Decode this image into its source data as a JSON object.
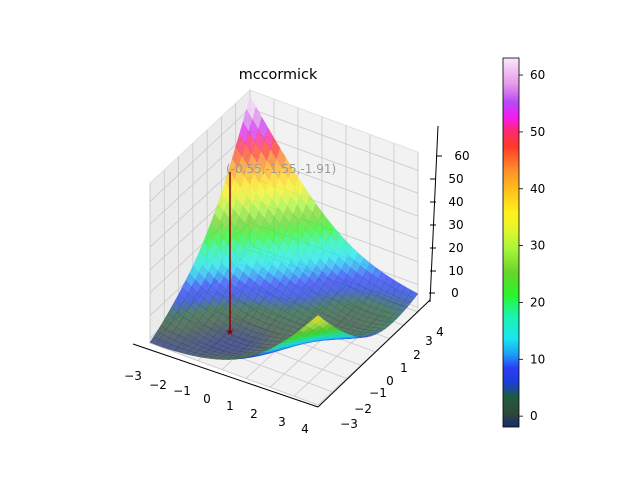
{
  "chart_data": {
    "type": "surface3d",
    "title": "mccormick",
    "function": "f(x,y) = sin(x+y) + (x-y)^2 - 1.5x + 2.5y + 1",
    "x": {
      "label": "",
      "ticks": [
        -3,
        -2,
        -1,
        0,
        1,
        2,
        3,
        4
      ],
      "range": [
        -3,
        4
      ]
    },
    "y": {
      "label": "",
      "ticks": [
        -3,
        -2,
        -1,
        0,
        1,
        2,
        3,
        4
      ],
      "range": [
        -3,
        4
      ]
    },
    "z": {
      "label": "",
      "ticks": [
        0,
        10,
        20,
        30,
        40,
        50,
        60
      ],
      "range": [
        -2,
        68
      ]
    },
    "colormap": "gist_ncar",
    "colorbar": {
      "ticks": [
        0,
        10,
        20,
        30,
        40,
        50,
        60
      ],
      "range": [
        -1.91,
        63
      ]
    },
    "minimum_marker": {
      "x": -0.55,
      "y": -1.55,
      "z": -1.91,
      "marker": "star",
      "color": "#8b0000"
    },
    "annotation": "(-0.55,-1.55,-1.91)",
    "grid": true
  },
  "labels": {
    "title": "mccormick",
    "annotation": "(-0.55,-1.55,-1.91)",
    "xticks": [
      "−3",
      "−2",
      "−1",
      "0",
      "1",
      "2",
      "3",
      "4"
    ],
    "yticks": [
      "−3",
      "−2",
      "−1",
      "0",
      "1",
      "2",
      "3",
      "4"
    ],
    "zticks": [
      "0",
      "10",
      "20",
      "30",
      "40",
      "50",
      "60"
    ],
    "cbticks": [
      "0",
      "10",
      "20",
      "30",
      "40",
      "50",
      "60"
    ]
  }
}
